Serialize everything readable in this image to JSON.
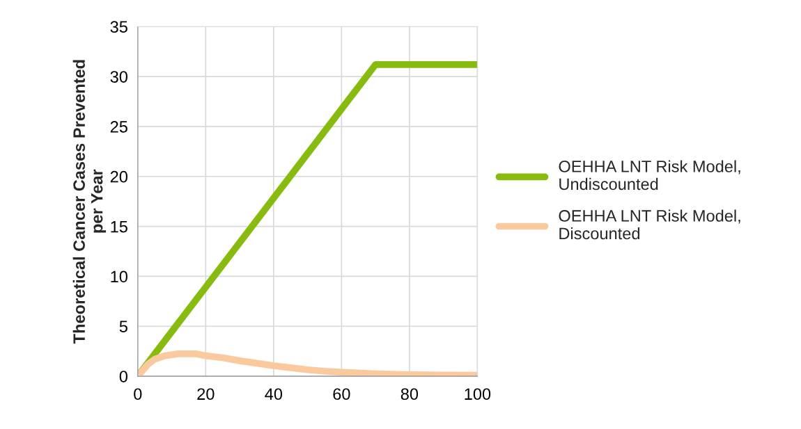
{
  "chart_data": {
    "type": "line",
    "ylabel": "Theoretical Cancer Cases Prevented\nper Year",
    "series": [
      {
        "name": "OEHHA LNT Risk Model,\nUndiscounted",
        "color": "#88bb10",
        "x": [
          1,
          70,
          100
        ],
        "values": [
          0.45,
          31.2,
          31.2
        ]
      },
      {
        "name": "OEHHA LNT Risk Model,\nDiscounted",
        "color": "#fbc99e",
        "x": [
          1,
          3,
          5,
          8,
          12,
          17,
          20,
          25,
          30,
          35,
          40,
          45,
          50,
          55,
          60,
          70,
          80,
          90,
          100
        ],
        "values": [
          0.4,
          1.2,
          1.7,
          2.05,
          2.25,
          2.25,
          2.05,
          1.85,
          1.55,
          1.3,
          1.05,
          0.85,
          0.65,
          0.5,
          0.4,
          0.25,
          0.15,
          0.12,
          0.1
        ]
      }
    ],
    "xlim": [
      0,
      100
    ],
    "xticks": [
      0,
      20,
      40,
      60,
      80,
      100
    ],
    "ylim": [
      0,
      35
    ],
    "yticks": [
      0,
      5,
      10,
      15,
      20,
      25,
      30,
      35
    ],
    "grid": true,
    "legend": "right",
    "marker": "none",
    "line_style": "solid"
  }
}
